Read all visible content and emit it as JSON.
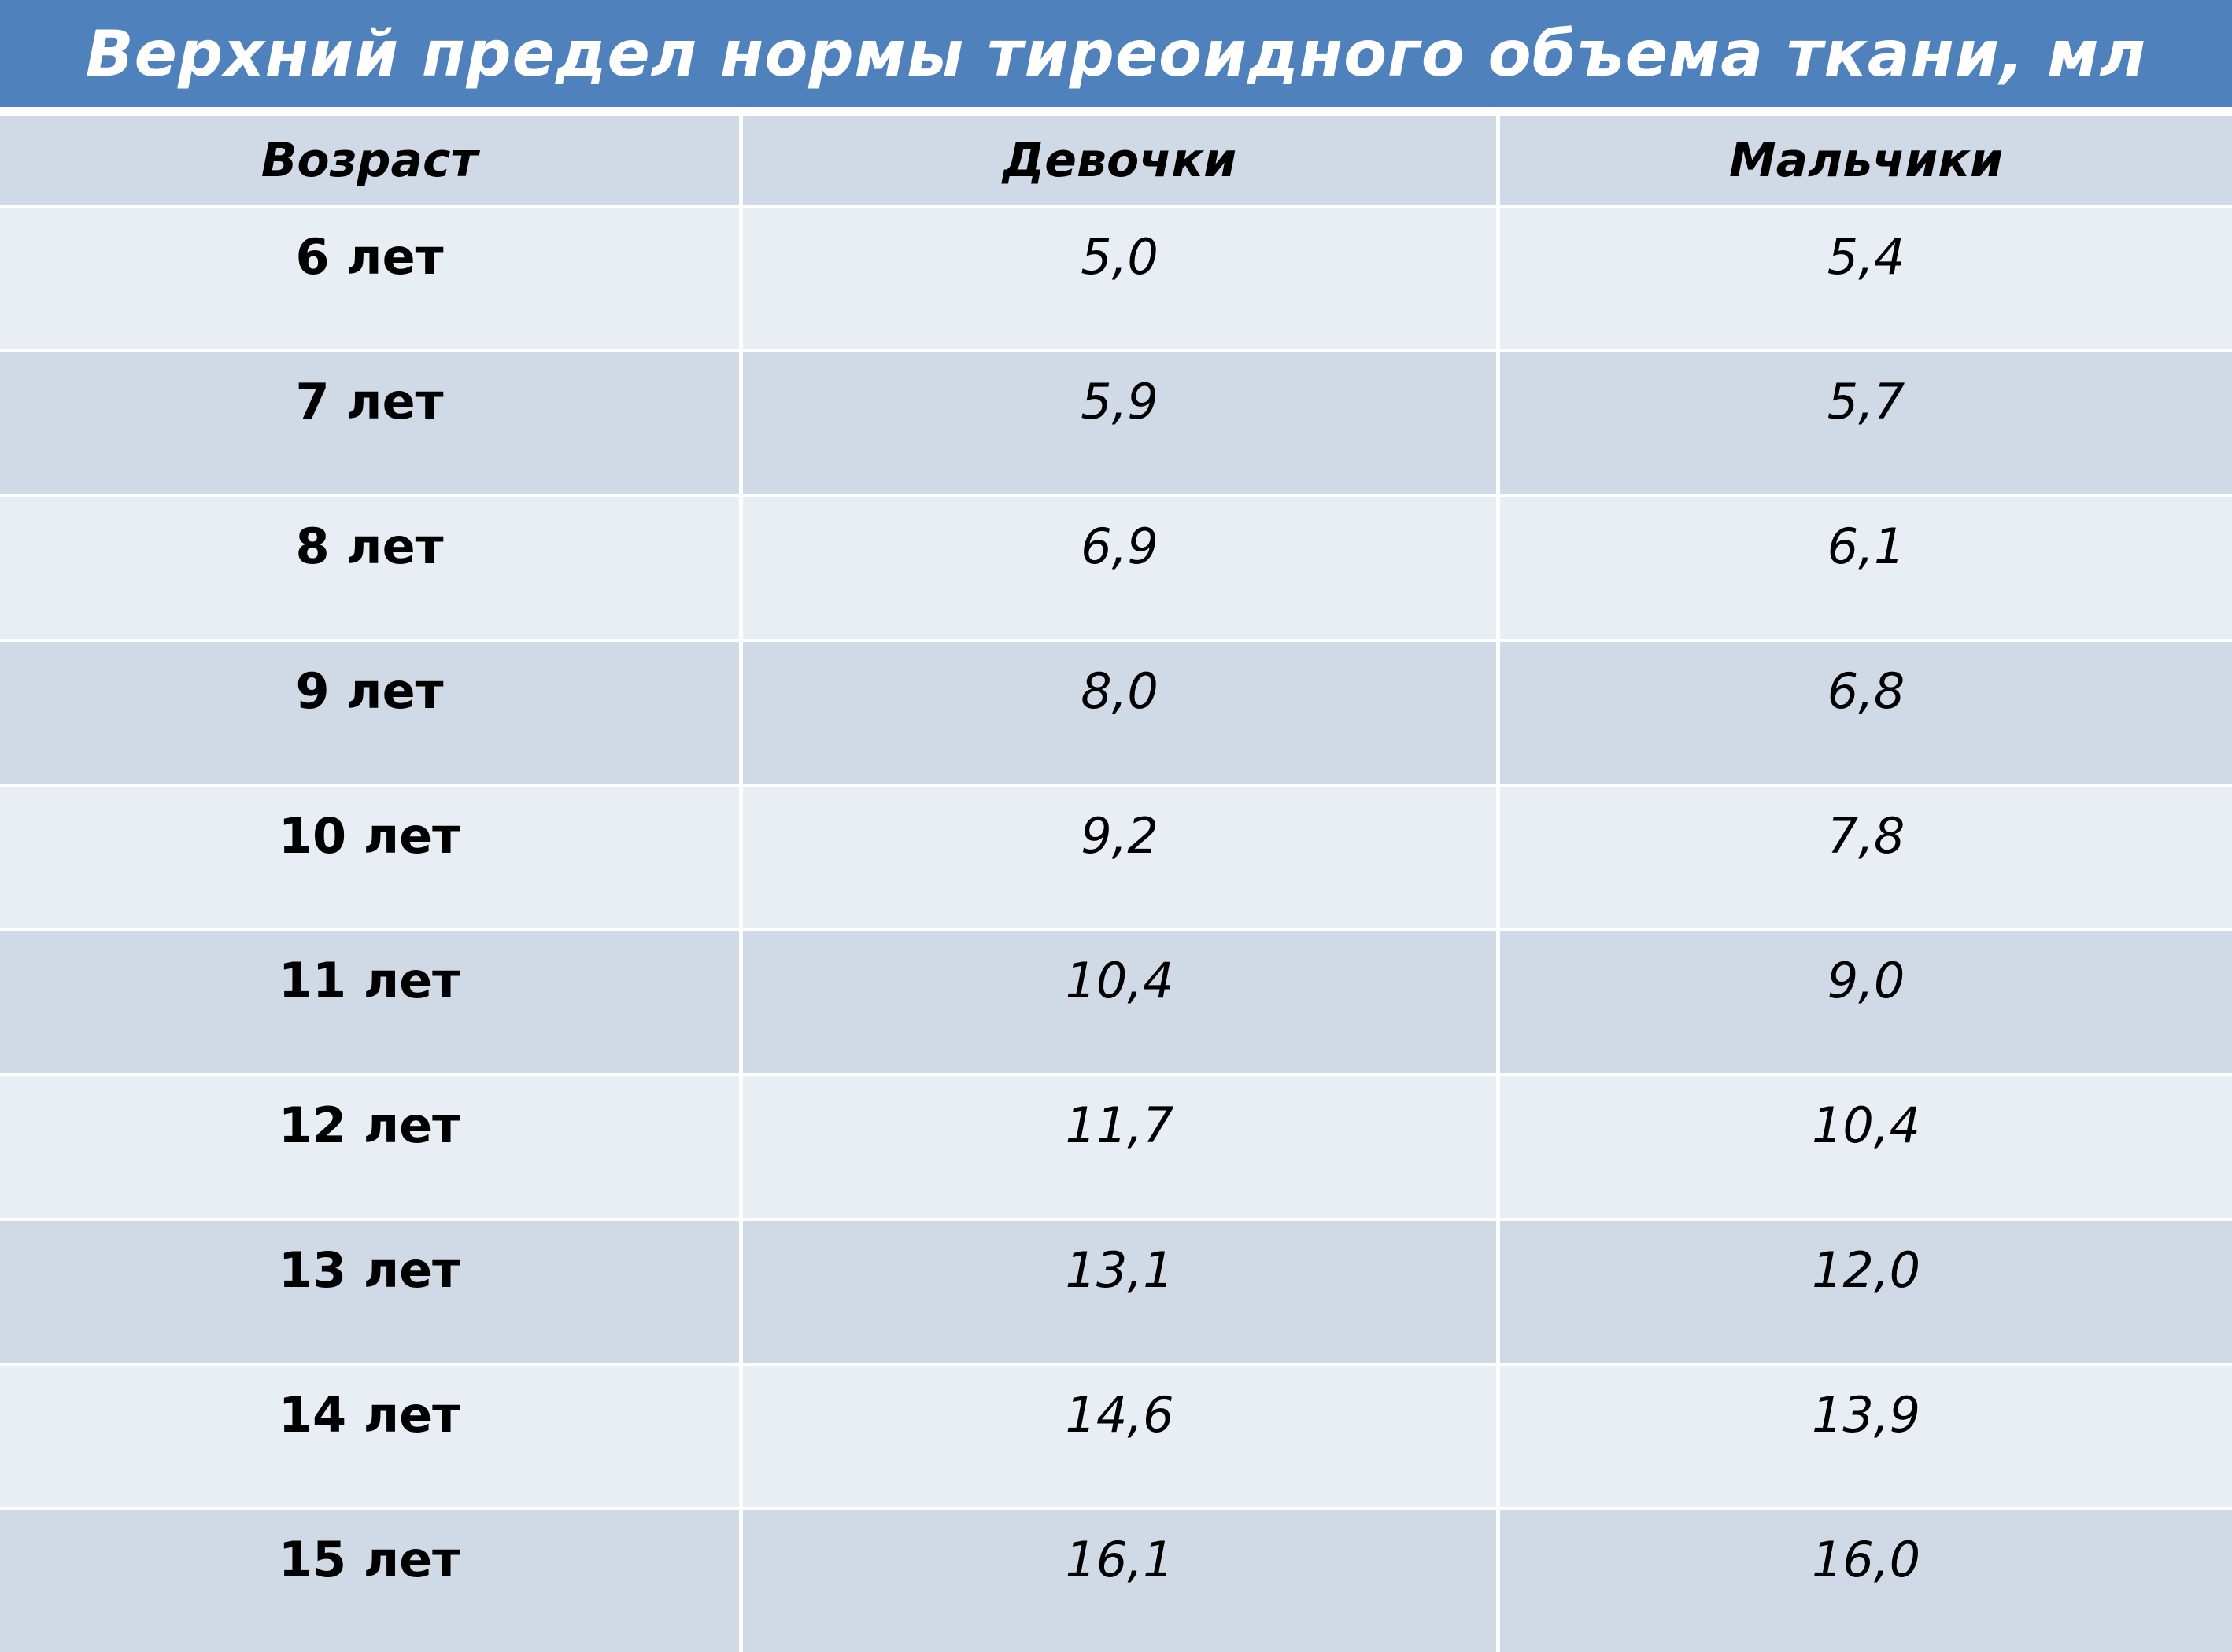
{
  "title": "Верхний предел нормы тиреоидного объема ткани, мл",
  "table": {
    "headers": [
      "Возраст",
      "Девочки",
      "Мальчики"
    ],
    "rows": [
      {
        "age": "6 лет",
        "girls": "5,0",
        "boys": "5,4"
      },
      {
        "age": "7 лет",
        "girls": "5,9",
        "boys": "5,7"
      },
      {
        "age": "8 лет",
        "girls": "6,9",
        "boys": "6,1"
      },
      {
        "age": "9 лет",
        "girls": "8,0",
        "boys": "6,8"
      },
      {
        "age": "10 лет",
        "girls": "9,2",
        "boys": "7,8"
      },
      {
        "age": "11 лет",
        "girls": "10,4",
        "boys": "9,0"
      },
      {
        "age": "12 лет",
        "girls": "11,7",
        "boys": "10,4"
      },
      {
        "age": "13 лет",
        "girls": "13,1",
        "boys": "12,0"
      },
      {
        "age": "14 лет",
        "girls": "14,6",
        "boys": "13,9"
      },
      {
        "age": "15 лет",
        "girls": "16,1",
        "boys": "16,0"
      }
    ]
  },
  "colors": {
    "title_bar": "#4f81bd",
    "row_light": "#e9edf4",
    "row_dark": "#d0d9e6"
  }
}
